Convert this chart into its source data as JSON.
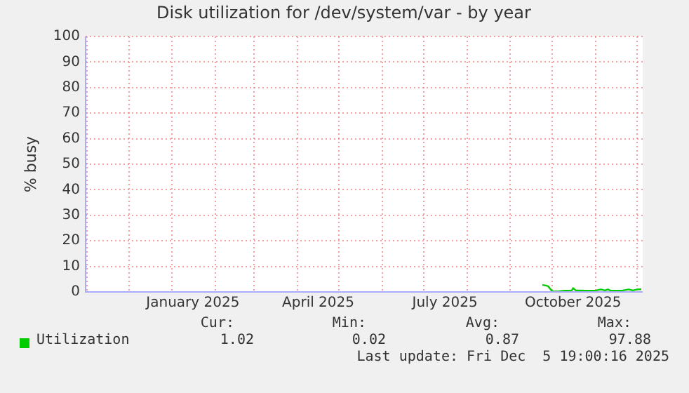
{
  "chart_data": {
    "type": "line",
    "title": "Disk utilization for /dev/system/var - by year",
    "ylabel": "% busy",
    "x": [
      "2025-09-24",
      "2025-09-28",
      "2025-10-01",
      "2025-10-05",
      "2025-10-10",
      "2025-10-15",
      "2025-10-16",
      "2025-10-18",
      "2025-10-25",
      "2025-11-01",
      "2025-11-05",
      "2025-11-08",
      "2025-11-10",
      "2025-11-12",
      "2025-11-20",
      "2025-11-25",
      "2025-11-28",
      "2025-12-01",
      "2025-12-04"
    ],
    "series": [
      {
        "name": "Utilization",
        "color": "#00cc00",
        "values": [
          2.8,
          2.3,
          0.3,
          0.2,
          0.5,
          0.5,
          1.5,
          0.6,
          0.5,
          0.5,
          1.0,
          0.6,
          1.0,
          0.5,
          0.5,
          1.0,
          0.6,
          1.0,
          1.02
        ]
      }
    ],
    "xlim": [
      "2024-10-31",
      "2025-12-05"
    ],
    "xticks": [
      {
        "value": "2024-11-01",
        "label": null
      },
      {
        "value": "2024-12-01",
        "label": null
      },
      {
        "value": "2025-01-01",
        "label": null
      },
      {
        "value": "2025-01-16",
        "label": "January 2025"
      },
      {
        "value": "2025-02-01",
        "label": null
      },
      {
        "value": "2025-03-01",
        "label": null
      },
      {
        "value": "2025-04-01",
        "label": null
      },
      {
        "value": "2025-04-16",
        "label": "April 2025"
      },
      {
        "value": "2025-05-01",
        "label": null
      },
      {
        "value": "2025-06-01",
        "label": null
      },
      {
        "value": "2025-07-01",
        "label": null
      },
      {
        "value": "2025-07-16",
        "label": "July 2025"
      },
      {
        "value": "2025-08-01",
        "label": null
      },
      {
        "value": "2025-09-01",
        "label": null
      },
      {
        "value": "2025-10-01",
        "label": null
      },
      {
        "value": "2025-10-16",
        "label": "October 2025"
      },
      {
        "value": "2025-11-01",
        "label": null
      },
      {
        "value": "2025-12-01",
        "label": null
      }
    ],
    "ylim": [
      0,
      100
    ],
    "yticks": [
      0,
      10,
      20,
      30,
      40,
      50,
      60,
      70,
      80,
      90,
      100
    ],
    "grid": true,
    "legend": "bottom left",
    "marker": "none",
    "line_style": "solid",
    "annotations": [
      "Cur:",
      "1.02",
      "Min:",
      "0.02",
      "Avg:",
      "0.87",
      "Max:",
      "97.88",
      "Last update: Fri Dec  5 19:00:16 2025"
    ]
  }
}
